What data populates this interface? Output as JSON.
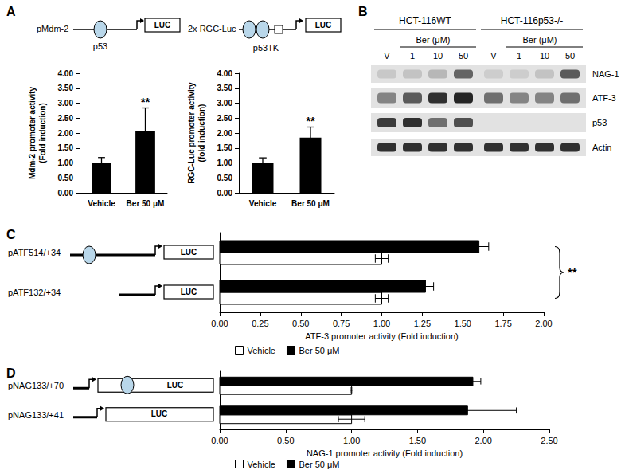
{
  "chart_data": [
    {
      "type": "bar",
      "panel": "A",
      "schematic": {
        "name": "pMdm-2",
        "label": "p53",
        "reporter": "LUC"
      },
      "y_label": "Mdm-2 promoter activity (Fold induction)",
      "categories": [
        "Vehicle",
        "Ber 50 μM"
      ],
      "values": [
        1.0,
        2.07
      ],
      "errors": [
        0.18,
        0.77
      ],
      "color": "#000000",
      "ylim": [
        0,
        4
      ],
      "yticks": [
        {
          "value": 0,
          "label": "0.00"
        },
        {
          "value": 0.5,
          "label": "0.50"
        },
        {
          "value": 1,
          "label": "1.00"
        },
        {
          "value": 1.5,
          "label": "1.50"
        },
        {
          "value": 2,
          "label": "2.00"
        },
        {
          "value": 2.5,
          "label": "2.50"
        },
        {
          "value": 3,
          "label": "3.00"
        },
        {
          "value": 3.5,
          "label": "3.50"
        },
        {
          "value": 4,
          "label": "4.00"
        }
      ],
      "annotations": [
        {
          "category": "Ber 50 μM",
          "text": "**"
        }
      ]
    },
    {
      "type": "bar",
      "schematic": {
        "name": "2x RGC-Luc",
        "label": "p53TK",
        "reporter": "LUC"
      },
      "y_label": "RGC-Luc promoter activity (fold induction)",
      "categories": [
        "Vehicle",
        "Ber 50 μM"
      ],
      "values": [
        1.0,
        1.85
      ],
      "errors": [
        0.17,
        0.35
      ],
      "color": "#000000",
      "ylim": [
        0,
        4
      ],
      "yticks": [
        {
          "value": 0,
          "label": "0.00"
        },
        {
          "value": 0.5,
          "label": "0.50"
        },
        {
          "value": 1,
          "label": "1.00"
        },
        {
          "value": 1.5,
          "label": "1.50"
        },
        {
          "value": 2,
          "label": "2.00"
        },
        {
          "value": 2.5,
          "label": "2.50"
        },
        {
          "value": 3,
          "label": "3.00"
        },
        {
          "value": 3.5,
          "label": "3.50"
        },
        {
          "value": 4,
          "label": "4.00"
        }
      ],
      "annotations": [
        {
          "category": "Ber 50 μM",
          "text": "**"
        }
      ]
    },
    {
      "type": "bar",
      "panel": "C",
      "orientation": "horizontal",
      "schematic": {
        "reporter": "LUC"
      },
      "x_label": "ATF-3 promoter activity (Fold induction)",
      "categories": [
        "pATF514/+34",
        "pATF132/+34"
      ],
      "series": [
        {
          "name": "Vehicle",
          "color": "#ffffff",
          "values": [
            1.0,
            1.0
          ],
          "errors": [
            0.04,
            0.04
          ]
        },
        {
          "name": "Ber 50 μM",
          "color": "#000000",
          "values": [
            1.6,
            1.27
          ],
          "errors": [
            0.06,
            0.05
          ]
        }
      ],
      "xlim": [
        0,
        2
      ],
      "xticks": [
        {
          "value": 0,
          "label": "0.00"
        },
        {
          "value": 0.25,
          "label": "0.25"
        },
        {
          "value": 0.5,
          "label": "0.50"
        },
        {
          "value": 0.75,
          "label": "0.75"
        },
        {
          "value": 1,
          "label": "1.00"
        },
        {
          "value": 1.25,
          "label": "1.25"
        },
        {
          "value": 1.5,
          "label": "1.50"
        },
        {
          "value": 1.75,
          "label": "1.75"
        },
        {
          "value": 2,
          "label": "2.00"
        }
      ],
      "legend": "bottom",
      "annotations": [
        {
          "text": "**"
        }
      ]
    },
    {
      "type": "bar",
      "panel": "D",
      "orientation": "horizontal",
      "schematic": {
        "reporter": "LUC"
      },
      "x_label": "NAG-1 promoter activity (Fold induction)",
      "categories": [
        "pNAG133/+70",
        "pNAG133/+41"
      ],
      "series": [
        {
          "name": "Vehicle",
          "color": "#ffffff",
          "values": [
            1.0,
            1.0
          ],
          "errors": [
            0.01,
            0.1
          ]
        },
        {
          "name": "Ber 50 μM",
          "color": "#000000",
          "values": [
            1.92,
            1.88
          ],
          "errors": [
            0.06,
            0.37
          ]
        }
      ],
      "xlim": [
        0,
        2.5
      ],
      "xticks": [
        {
          "value": 0,
          "label": "0.00"
        },
        {
          "value": 0.5,
          "label": "0.50"
        },
        {
          "value": 1,
          "label": "1.00"
        },
        {
          "value": 1.5,
          "label": "1.50"
        },
        {
          "value": 2,
          "label": "2.00"
        },
        {
          "value": 2.5,
          "label": "2.50"
        }
      ],
      "legend": "bottom"
    }
  ],
  "blot": {
    "panel": "B",
    "groups": [
      {
        "name": "HCT-116WT",
        "treatment": "Ber (μM)",
        "lanes": [
          "V",
          "1",
          "10",
          "50"
        ]
      },
      {
        "name": "HCT-116p53-/-",
        "treatment": "Ber (μM)",
        "lanes": [
          "V",
          "1",
          "10",
          "50"
        ]
      }
    ],
    "rows": [
      {
        "name": "NAG-1",
        "intensity": [
          0.12,
          0.15,
          0.2,
          0.6,
          0.1,
          0.1,
          0.15,
          0.65
        ]
      },
      {
        "name": "ATF-3",
        "intensity": [
          0.45,
          0.65,
          0.85,
          0.9,
          0.55,
          0.45,
          0.45,
          0.55
        ]
      },
      {
        "name": "p53",
        "intensity": [
          0.8,
          0.85,
          0.55,
          0.7,
          0,
          0,
          0,
          0
        ]
      },
      {
        "name": "Actin",
        "intensity": [
          0.85,
          0.85,
          0.85,
          0.85,
          0.85,
          0.85,
          0.85,
          0.85
        ]
      }
    ]
  }
}
